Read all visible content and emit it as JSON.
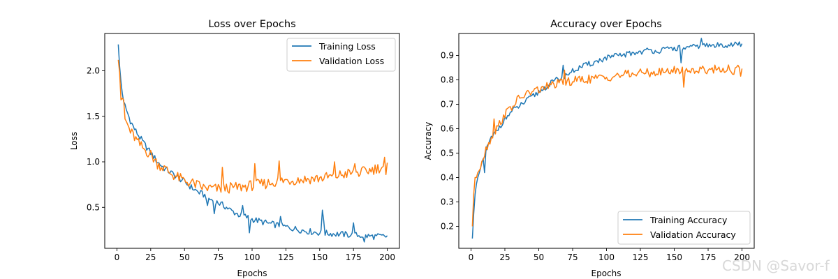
{
  "watermark": "CSDN @Savor-f",
  "chart_data": [
    {
      "type": "line",
      "title": "Loss over Epochs",
      "xlabel": "Epochs",
      "ylabel": "Loss",
      "xlim": [
        -9,
        209
      ],
      "ylim": [
        0.05,
        2.41
      ],
      "xticks": [
        0,
        25,
        50,
        75,
        100,
        125,
        150,
        175,
        200
      ],
      "yticks": [
        0.5,
        1.0,
        1.5,
        2.0
      ],
      "ytick_labels": [
        "0.5",
        "1.0",
        "1.5",
        "2.0"
      ],
      "legend": "top-right",
      "grid": false,
      "series": [
        {
          "name": "Training Loss",
          "color": "#1f77b4",
          "anchors": [
            [
              1,
              2.29
            ],
            [
              2,
              2.05
            ],
            [
              3,
              1.88
            ],
            [
              4,
              1.75
            ],
            [
              5,
              1.66
            ],
            [
              7,
              1.57
            ],
            [
              10,
              1.45
            ],
            [
              13,
              1.36
            ],
            [
              16,
              1.29
            ],
            [
              20,
              1.2
            ],
            [
              25,
              1.1
            ],
            [
              30,
              1.0
            ],
            [
              35,
              0.93
            ],
            [
              40,
              0.88
            ],
            [
              45,
              0.83
            ],
            [
              50,
              0.78
            ],
            [
              55,
              0.72
            ],
            [
              60,
              0.67
            ],
            [
              65,
              0.63
            ],
            [
              70,
              0.58
            ],
            [
              75,
              0.55
            ],
            [
              80,
              0.51
            ],
            [
              85,
              0.46
            ],
            [
              90,
              0.42
            ],
            [
              95,
              0.4
            ],
            [
              100,
              0.37
            ],
            [
              110,
              0.33
            ],
            [
              120,
              0.3
            ],
            [
              130,
              0.27
            ],
            [
              140,
              0.24
            ],
            [
              150,
              0.22
            ],
            [
              160,
              0.21
            ],
            [
              170,
              0.2
            ],
            [
              180,
              0.19
            ],
            [
              190,
              0.18
            ],
            [
              200,
              0.18
            ]
          ],
          "spikes": [
            [
              67,
              0.52
            ],
            [
              68,
              0.6
            ],
            [
              72,
              0.43
            ],
            [
              93,
              0.52
            ],
            [
              98,
              0.22
            ],
            [
              121,
              0.4
            ],
            [
              152,
              0.47
            ],
            [
              153,
              0.35
            ],
            [
              175,
              0.33
            ],
            [
              183,
              0.12
            ]
          ],
          "noise": 0.035
        },
        {
          "name": "Validation Loss",
          "color": "#ff7f0e",
          "anchors": [
            [
              1,
              2.12
            ],
            [
              2,
              1.98
            ],
            [
              3,
              1.68
            ],
            [
              4,
              1.7
            ],
            [
              5,
              1.68
            ],
            [
              6,
              1.47
            ],
            [
              8,
              1.4
            ],
            [
              10,
              1.33
            ],
            [
              13,
              1.27
            ],
            [
              16,
              1.2
            ],
            [
              20,
              1.14
            ],
            [
              25,
              1.08
            ],
            [
              30,
              0.98
            ],
            [
              35,
              0.93
            ],
            [
              40,
              0.87
            ],
            [
              45,
              0.83
            ],
            [
              50,
              0.79
            ],
            [
              55,
              0.77
            ],
            [
              60,
              0.74
            ],
            [
              65,
              0.71
            ],
            [
              70,
              0.71
            ],
            [
              75,
              0.7
            ],
            [
              80,
              0.71
            ],
            [
              90,
              0.72
            ],
            [
              100,
              0.74
            ],
            [
              110,
              0.76
            ],
            [
              120,
              0.79
            ],
            [
              130,
              0.8
            ],
            [
              140,
              0.81
            ],
            [
              150,
              0.82
            ],
            [
              160,
              0.84
            ],
            [
              170,
              0.87
            ],
            [
              180,
              0.88
            ],
            [
              190,
              0.92
            ],
            [
              200,
              0.96
            ]
          ],
          "spikes": [
            [
              78,
              0.94
            ],
            [
              102,
              0.98
            ],
            [
              120,
              1.01
            ],
            [
              161,
              1.0
            ],
            [
              176,
              0.98
            ],
            [
              198,
              1.05
            ],
            [
              199,
              0.86
            ]
          ],
          "noise": 0.06
        }
      ]
    },
    {
      "type": "line",
      "title": "Accuracy over Epochs",
      "xlabel": "Epochs",
      "ylabel": "Accuracy",
      "xlim": [
        -9,
        209
      ],
      "ylim": [
        0.11,
        0.99
      ],
      "xticks": [
        0,
        25,
        50,
        75,
        100,
        125,
        150,
        175,
        200
      ],
      "yticks": [
        0.2,
        0.3,
        0.4,
        0.5,
        0.6,
        0.7,
        0.8,
        0.9
      ],
      "ytick_labels": [
        "0.2",
        "0.3",
        "0.4",
        "0.5",
        "0.6",
        "0.7",
        "0.8",
        "0.9"
      ],
      "legend": "bottom-right",
      "grid": false,
      "series": [
        {
          "name": "Training Accuracy",
          "color": "#1f77b4",
          "anchors": [
            [
              1,
              0.15
            ],
            [
              2,
              0.25
            ],
            [
              3,
              0.33
            ],
            [
              5,
              0.4
            ],
            [
              8,
              0.45
            ],
            [
              10,
              0.5
            ],
            [
              15,
              0.56
            ],
            [
              20,
              0.6
            ],
            [
              25,
              0.64
            ],
            [
              30,
              0.67
            ],
            [
              40,
              0.71
            ],
            [
              50,
              0.75
            ],
            [
              60,
              0.79
            ],
            [
              70,
              0.82
            ],
            [
              80,
              0.85
            ],
            [
              90,
              0.87
            ],
            [
              100,
              0.89
            ],
            [
              110,
              0.9
            ],
            [
              120,
              0.91
            ],
            [
              130,
              0.92
            ],
            [
              140,
              0.92
            ],
            [
              150,
              0.93
            ],
            [
              160,
              0.93
            ],
            [
              170,
              0.94
            ],
            [
              180,
              0.94
            ],
            [
              190,
              0.945
            ],
            [
              200,
              0.945
            ]
          ],
          "spikes": [
            [
              10,
              0.42
            ],
            [
              68,
              0.86
            ],
            [
              155,
              0.87
            ],
            [
              170,
              0.97
            ]
          ],
          "noise": 0.012
        },
        {
          "name": "Validation Accuracy",
          "color": "#ff7f0e",
          "anchors": [
            [
              1,
              0.2
            ],
            [
              2,
              0.33
            ],
            [
              3,
              0.4
            ],
            [
              5,
              0.42
            ],
            [
              8,
              0.47
            ],
            [
              12,
              0.53
            ],
            [
              15,
              0.56
            ],
            [
              20,
              0.61
            ],
            [
              25,
              0.66
            ],
            [
              30,
              0.69
            ],
            [
              35,
              0.72
            ],
            [
              40,
              0.74
            ],
            [
              50,
              0.76
            ],
            [
              60,
              0.78
            ],
            [
              70,
              0.79
            ],
            [
              80,
              0.8
            ],
            [
              90,
              0.805
            ],
            [
              100,
              0.81
            ],
            [
              110,
              0.82
            ],
            [
              120,
              0.825
            ],
            [
              130,
              0.83
            ],
            [
              140,
              0.83
            ],
            [
              150,
              0.84
            ],
            [
              160,
              0.84
            ],
            [
              170,
              0.84
            ],
            [
              180,
              0.845
            ],
            [
              190,
              0.845
            ],
            [
              200,
              0.83
            ]
          ],
          "spikes": [
            [
              17,
              0.64
            ],
            [
              69,
              0.84
            ],
            [
              157,
              0.77
            ],
            [
              197,
              0.86
            ]
          ],
          "noise": 0.018
        }
      ]
    }
  ]
}
